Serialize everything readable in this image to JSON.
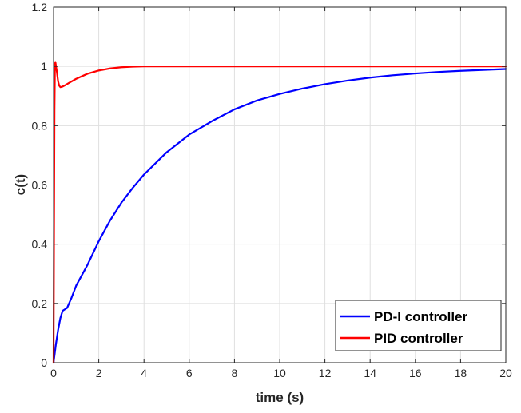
{
  "chart_data": {
    "type": "line",
    "title": "",
    "xlabel": "time (s)",
    "ylabel": "c(t)",
    "xlim": [
      0,
      20
    ],
    "ylim": [
      0,
      1.2
    ],
    "xticks": [
      0,
      2,
      4,
      6,
      8,
      10,
      12,
      14,
      16,
      18,
      20
    ],
    "xtick_labels": [
      "0",
      "2",
      "4",
      "6",
      "8",
      "10",
      "12",
      "14",
      "16",
      "18",
      "20"
    ],
    "yticks": [
      0,
      0.2,
      0.4,
      0.6,
      0.8,
      1,
      1.2
    ],
    "ytick_labels": [
      "0",
      "0.2",
      "0.4",
      "0.6",
      "0.8",
      "1",
      "1.2"
    ],
    "grid": true,
    "legend_position": "bottom-right",
    "series": [
      {
        "name": "PD-I controller",
        "color": "#0000ff",
        "x": [
          0,
          0.1,
          0.2,
          0.3,
          0.4,
          0.5,
          0.6,
          0.8,
          1.0,
          1.5,
          2,
          2.5,
          3,
          3.5,
          4,
          5,
          6,
          7,
          8,
          9,
          10,
          11,
          12,
          13,
          14,
          15,
          16,
          17,
          18,
          19,
          20
        ],
        "y": [
          0,
          0.06,
          0.11,
          0.15,
          0.175,
          0.18,
          0.185,
          0.22,
          0.26,
          0.33,
          0.41,
          0.48,
          0.54,
          0.59,
          0.635,
          0.71,
          0.77,
          0.815,
          0.855,
          0.885,
          0.907,
          0.925,
          0.94,
          0.952,
          0.962,
          0.97,
          0.976,
          0.981,
          0.985,
          0.988,
          0.991
        ]
      },
      {
        "name": "PID controller",
        "color": "#ff0000",
        "x": [
          0,
          0.02,
          0.04,
          0.06,
          0.08,
          0.1,
          0.15,
          0.2,
          0.25,
          0.3,
          0.4,
          0.5,
          0.7,
          1.0,
          1.5,
          2,
          2.5,
          3,
          3.5,
          4,
          5,
          6,
          8,
          10,
          12,
          14,
          16,
          18,
          20
        ],
        "y": [
          0,
          0.45,
          0.85,
          1.0,
          1.015,
          1.005,
          0.98,
          0.95,
          0.935,
          0.93,
          0.932,
          0.936,
          0.945,
          0.958,
          0.975,
          0.986,
          0.993,
          0.997,
          0.999,
          1.0,
          1.0,
          1.0,
          1.0,
          1.0,
          1.0,
          1.0,
          1.0,
          1.0,
          1.0
        ]
      }
    ]
  }
}
